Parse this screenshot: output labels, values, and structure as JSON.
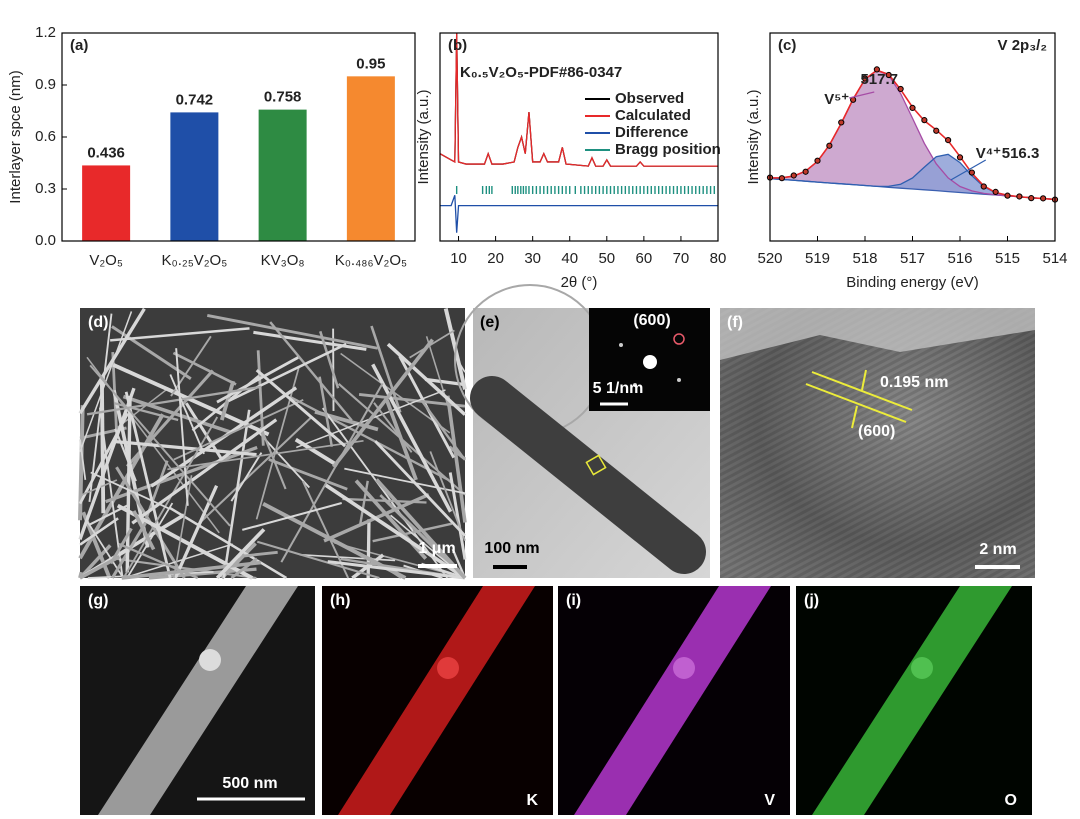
{
  "chart_data": [
    {
      "type": "bar",
      "panel_label": "(a)",
      "ylabel": "Interlayer spce (nm)",
      "categories": [
        "V₂O₅",
        "K₀.₂₅V₂O₅",
        "KV₃O₈",
        "K₀.₄₈₆V₂O₅"
      ],
      "values": [
        0.436,
        0.742,
        0.758,
        0.95
      ],
      "colors": [
        "#e8292a",
        "#1f4fa8",
        "#2e8b43",
        "#f5892f"
      ],
      "ylim": [
        0,
        1.2
      ],
      "yticks": [
        {
          "value": 0,
          "label": "0.0"
        },
        0.3,
        0.6,
        0.9,
        1.2
      ]
    },
    {
      "type": "line",
      "panel_label": "(b)",
      "annotation": "K₀.₅V₂O₅-PDF#86-0347",
      "annotation_color": "#a64ca6",
      "xlabel": "2θ (°)",
      "ylabel": "Intensity (a.u.)",
      "x": [
        5,
        8,
        9.0,
        9.5,
        10.0,
        12,
        17,
        18,
        19,
        22,
        25,
        26,
        27,
        28,
        29,
        30,
        32,
        33,
        34,
        37,
        38,
        39,
        45,
        46,
        47,
        49,
        50,
        51,
        58,
        59,
        60,
        70,
        80
      ],
      "series": [
        {
          "name": "Observed",
          "color": "#000000",
          "values": [
            0.42,
            0.39,
            0.38,
            1.0,
            0.38,
            0.37,
            0.37,
            0.42,
            0.37,
            0.37,
            0.38,
            0.45,
            0.5,
            0.42,
            0.62,
            0.38,
            0.38,
            0.42,
            0.38,
            0.38,
            0.45,
            0.37,
            0.36,
            0.4,
            0.36,
            0.36,
            0.39,
            0.36,
            0.36,
            0.38,
            0.36,
            0.36,
            0.36
          ]
        },
        {
          "name": "Calculated",
          "color": "#e8292a",
          "values": [
            0.42,
            0.39,
            0.38,
            1.0,
            0.38,
            0.37,
            0.37,
            0.42,
            0.37,
            0.37,
            0.38,
            0.45,
            0.5,
            0.42,
            0.62,
            0.38,
            0.38,
            0.42,
            0.38,
            0.38,
            0.45,
            0.37,
            0.36,
            0.4,
            0.36,
            0.36,
            0.39,
            0.36,
            0.36,
            0.38,
            0.36,
            0.36,
            0.36
          ]
        },
        {
          "name": "Difference",
          "color": "#1f4fa8",
          "values": [
            0.17,
            0.17,
            0.22,
            0.04,
            0.17,
            0.17,
            0.17,
            0.17,
            0.17,
            0.17,
            0.17,
            0.17,
            0.17,
            0.17,
            0.17,
            0.17,
            0.17,
            0.17,
            0.17,
            0.17,
            0.17,
            0.17,
            0.17,
            0.17,
            0.17,
            0.17,
            0.17,
            0.17,
            0.17,
            0.17,
            0.17,
            0.17,
            0.17
          ]
        }
      ],
      "bragg": {
        "name": "Bragg position",
        "color": "#1e9080",
        "x": [
          9.5,
          16.5,
          17.5,
          18.3,
          19,
          24.5,
          25.3,
          26,
          26.8,
          27.5,
          28.2,
          29,
          30,
          31,
          32,
          33,
          34,
          35,
          36,
          37,
          38,
          39,
          40,
          41.5,
          43,
          44,
          45,
          46,
          47,
          48,
          49,
          50,
          51,
          52,
          53,
          54,
          55,
          56,
          57,
          58,
          59,
          60,
          61,
          62,
          63,
          64,
          65,
          66,
          67,
          68,
          69,
          70,
          71,
          72,
          73,
          74,
          75,
          76,
          77,
          78,
          79
        ]
      },
      "xlim": [
        5,
        80
      ],
      "ylim": [
        0,
        1
      ],
      "xticks": [
        10,
        20,
        30,
        40,
        50,
        60,
        70,
        80
      ]
    },
    {
      "type": "area",
      "panel_label": "(c)",
      "title": "V 2p₃/₂",
      "xlabel": "Binding energy (eV)",
      "ylabel": "Intensity (a.u.)",
      "x": [
        520,
        519.75,
        519.5,
        519.25,
        519,
        518.75,
        518.5,
        518.25,
        518,
        517.75,
        517.5,
        517.25,
        517,
        516.75,
        516.5,
        516.25,
        516,
        515.75,
        515.5,
        515.25,
        515,
        514.75,
        514.5,
        514.25,
        514
      ],
      "observed": {
        "color": "#000000",
        "values": [
          0.305,
          0.302,
          0.315,
          0.333,
          0.386,
          0.458,
          0.57,
          0.679,
          0.781,
          0.825,
          0.798,
          0.731,
          0.64,
          0.581,
          0.53,
          0.485,
          0.402,
          0.329,
          0.262,
          0.236,
          0.218,
          0.214,
          0.206,
          0.205,
          0.199
        ]
      },
      "envelope": {
        "color": "#e8292a",
        "values": [
          0.303,
          0.304,
          0.312,
          0.336,
          0.383,
          0.461,
          0.566,
          0.682,
          0.778,
          0.821,
          0.801,
          0.728,
          0.643,
          0.578,
          0.534,
          0.482,
          0.406,
          0.326,
          0.265,
          0.233,
          0.22,
          0.2125,
          0.208,
          0.204,
          0.2
        ]
      },
      "background": {
        "color": "#3a5fb0",
        "values": [
          0.3,
          0.296,
          0.292,
          0.2875,
          0.283,
          0.279,
          0.275,
          0.271,
          0.267,
          0.2625,
          0.258,
          0.254,
          0.25,
          0.246,
          0.242,
          0.2375,
          0.233,
          0.229,
          0.225,
          0.221,
          0.217,
          0.2125,
          0.208,
          0.204,
          0.2
        ]
      },
      "components": [
        {
          "label": "V⁵⁺",
          "peak": 517.7,
          "color": "#a64ca6",
          "fill": "#c69ac8",
          "values": [
            0.303,
            0.304,
            0.312,
            0.336,
            0.383,
            0.461,
            0.566,
            0.682,
            0.778,
            0.821,
            0.796,
            0.709,
            0.59,
            0.469,
            0.371,
            0.3035,
            0.262,
            0.241,
            0.229,
            0.222,
            0.217,
            0.2125,
            0.208,
            0.204,
            0.2
          ]
        },
        {
          "label": "V⁴⁺",
          "peak": 516.3,
          "color": "#2f5fb0",
          "fill": "#8d9fd6",
          "values": [
            0.3,
            0.296,
            0.292,
            0.2875,
            0.283,
            0.279,
            0.275,
            0.271,
            0.267,
            0.2625,
            0.263,
            0.273,
            0.303,
            0.355,
            0.405,
            0.4165,
            0.377,
            0.314,
            0.261,
            0.232,
            0.22,
            0.2125,
            0.208,
            0.204,
            0.2
          ]
        }
      ],
      "xlim": [
        520,
        514
      ],
      "ylim": [
        0,
        1
      ],
      "xticks": [
        520,
        519,
        518,
        517,
        516,
        515,
        514
      ]
    }
  ],
  "images": [
    {
      "label": "(d)",
      "scale": "1 μm"
    },
    {
      "label": "(e)",
      "scale": "100 nm",
      "inset_scale": "5 1/nm",
      "inset_spot": "(600)"
    },
    {
      "label": "(f)",
      "scale": "2 nm",
      "spacing": "0.195 nm",
      "plane": "(600)"
    },
    {
      "label": "(g)",
      "scale": "500 nm"
    },
    {
      "label": "(h)",
      "element": "K"
    },
    {
      "label": "(i)",
      "element": "V"
    },
    {
      "label": "(j)",
      "element": "O"
    }
  ]
}
